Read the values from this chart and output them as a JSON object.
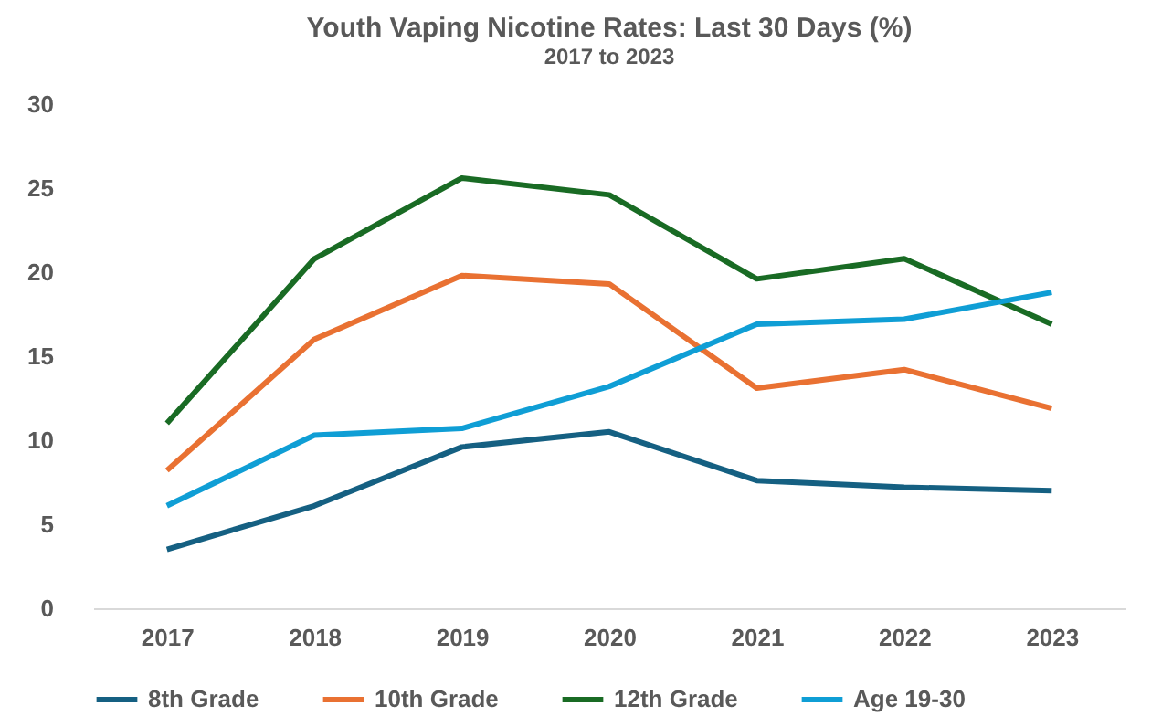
{
  "chart_data": {
    "type": "line",
    "title": "Youth Vaping Nicotine Rates: Last 30 Days (%)",
    "subtitle": "2017 to 2023",
    "categories": [
      "2017",
      "2018",
      "2019",
      "2020",
      "2021",
      "2022",
      "2023"
    ],
    "series": [
      {
        "name": "8th Grade",
        "color": "#156082",
        "values": [
          3.5,
          6.1,
          9.6,
          10.5,
          7.6,
          7.2,
          7.0
        ]
      },
      {
        "name": "10th Grade",
        "color": "#e97132",
        "values": [
          8.2,
          16.0,
          19.8,
          19.3,
          13.1,
          14.2,
          11.9
        ]
      },
      {
        "name": "12th Grade",
        "color": "#196b24",
        "values": [
          11.0,
          20.8,
          25.6,
          24.6,
          19.6,
          20.8,
          16.9
        ]
      },
      {
        "name": "Age 19-30",
        "color": "#0f9ed5",
        "values": [
          6.1,
          10.3,
          10.7,
          13.2,
          16.9,
          17.2,
          18.8
        ]
      }
    ],
    "ylim": [
      0,
      30
    ],
    "yticks": [
      0,
      5,
      10,
      15,
      20,
      25,
      30
    ],
    "grid": false,
    "legend": "bottom",
    "marker": "none",
    "line_style": "solid"
  }
}
